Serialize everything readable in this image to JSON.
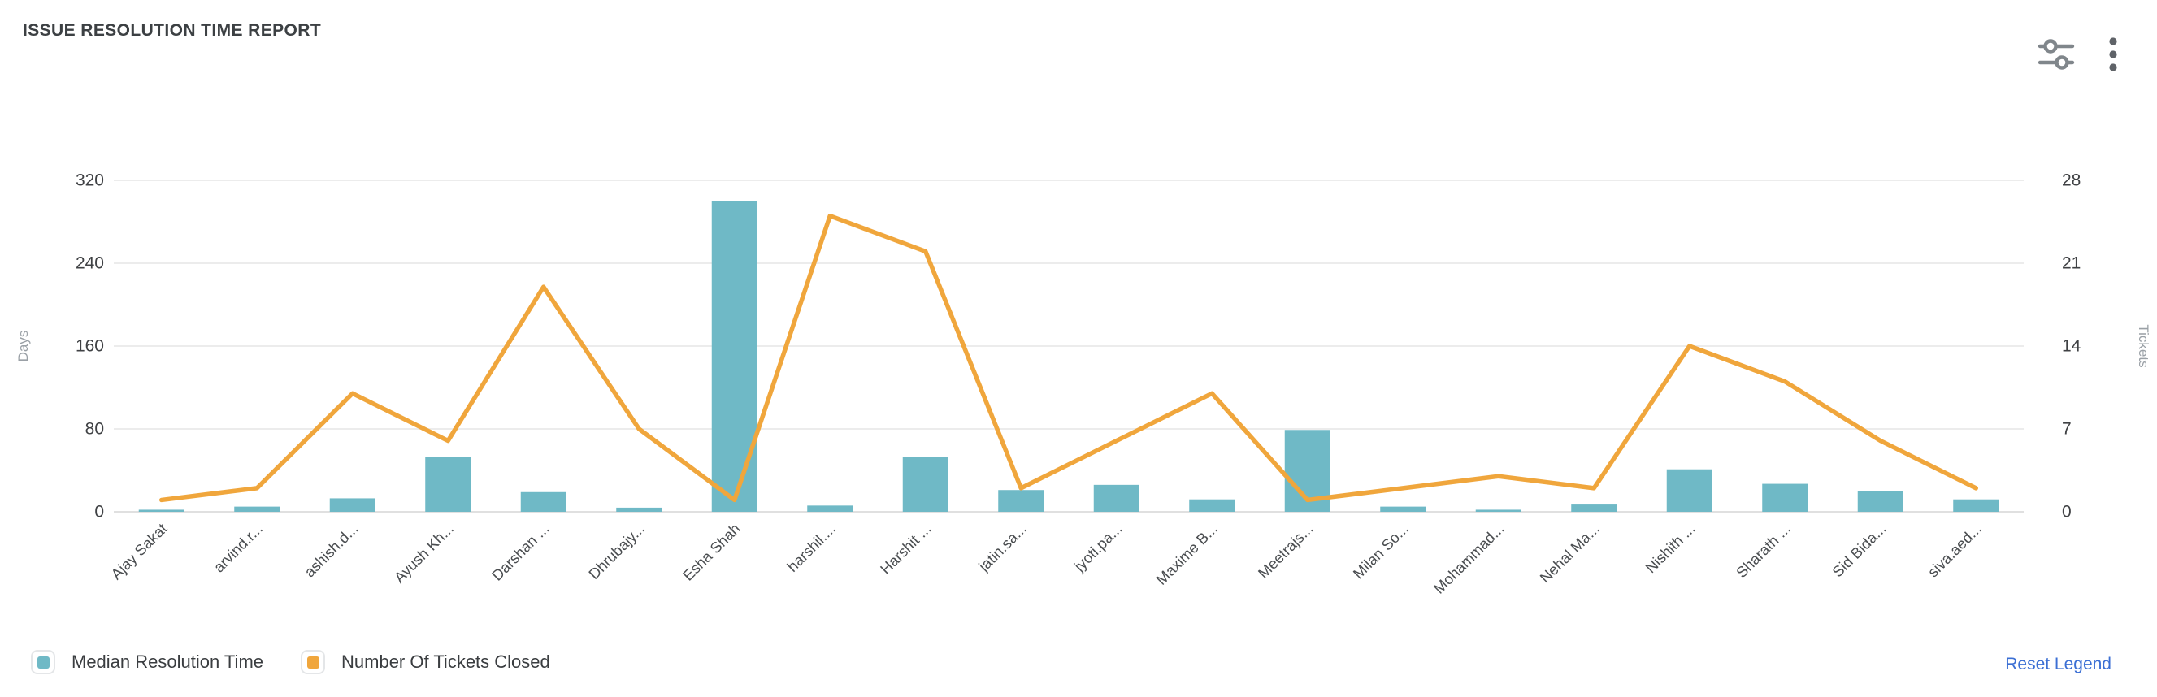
{
  "header": {
    "title": "ISSUE RESOLUTION TIME REPORT",
    "icons": [
      "sliders-icon",
      "kebab-menu-icon"
    ]
  },
  "colors": {
    "bar": "#6fb9c6",
    "line": "#f0a63c",
    "link": "#3b6fd4",
    "grid": "#ececec",
    "axis_line": "#e0e0e0",
    "tick_label": "#3f4144",
    "axis_name": "#9aa0a6",
    "x_label": "#4a4d50",
    "icon": "#80868b"
  },
  "chart_data": {
    "type": "bar",
    "note": "combo bar+line dual axis",
    "categories": [
      "Ajay Sakat",
      "arvind.r...",
      "ashish.d...",
      "Ayush Kh...",
      "Darshan ...",
      "Dhrubajy...",
      "Esha Shah",
      "harshil....",
      "Harshit ...",
      "jatin.sa...",
      "jyoti.pa...",
      "Maxime B...",
      "Meetrajs...",
      "Milan So...",
      "Mohammad...",
      "Nehal Ma...",
      "Nishith ...",
      "Sharath ...",
      "Sid Bida...",
      "siva.aed..."
    ],
    "series": [
      {
        "name": "Median Resolution Time",
        "type": "bar",
        "axis": "left",
        "values": [
          2,
          5,
          13,
          53,
          19,
          4,
          300,
          6,
          53,
          21,
          26,
          12,
          79,
          5,
          2,
          7,
          41,
          27,
          20,
          12
        ]
      },
      {
        "name": "Number Of Tickets Closed",
        "type": "line",
        "axis": "right",
        "values": [
          1,
          2,
          10,
          6,
          19,
          7,
          1,
          25,
          22,
          2,
          6,
          10,
          1,
          2,
          3,
          2,
          14,
          11,
          6,
          2
        ]
      }
    ],
    "left_axis": {
      "label": "Days",
      "ticks": [
        0,
        80,
        160,
        240,
        320
      ],
      "max": 320
    },
    "right_axis": {
      "label": "Tickets",
      "ticks": [
        0,
        7,
        14,
        21,
        28
      ],
      "max": 28
    },
    "grid": true,
    "legend_position": "bottom-left"
  },
  "legend": {
    "items": [
      {
        "label": "Median Resolution Time",
        "color": "#6fb9c6"
      },
      {
        "label": "Number Of Tickets Closed",
        "color": "#f0a63c"
      }
    ],
    "reset_label": "Reset Legend"
  }
}
